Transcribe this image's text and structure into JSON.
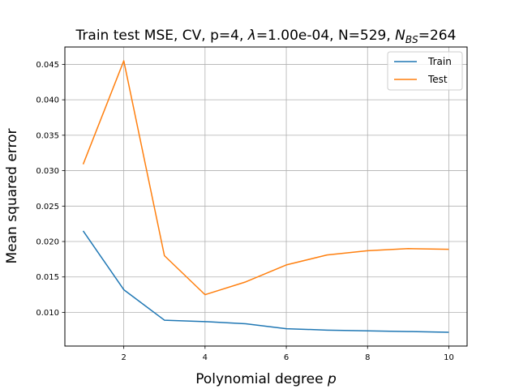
{
  "chart_data": {
    "type": "line",
    "title_parts": {
      "prefix": "Train test MSE, CV, p=4, ",
      "lambda_symbol": "λ",
      "lambda_value": "=1.00e-04, N=529, ",
      "nbs_base": "N",
      "nbs_sub": "BS",
      "nbs_value": "=264"
    },
    "xlabel_text": "Polynomial degree ",
    "xlabel_var": "p",
    "ylabel": "Mean squared error",
    "x": [
      1,
      2,
      3,
      4,
      5,
      6,
      7,
      8,
      9,
      10
    ],
    "xlim": [
      0.55,
      10.45
    ],
    "ylim": [
      0.00525,
      0.04745
    ],
    "xticks": [
      2,
      4,
      6,
      8,
      10
    ],
    "xtick_labels": [
      "2",
      "4",
      "6",
      "8",
      "10"
    ],
    "yticks": [
      0.01,
      0.015,
      0.02,
      0.025,
      0.03,
      0.035,
      0.04,
      0.045
    ],
    "ytick_labels": [
      "0.010",
      "0.015",
      "0.020",
      "0.025",
      "0.030",
      "0.035",
      "0.040",
      "0.045"
    ],
    "grid": true,
    "legend_position": "top-right",
    "series": [
      {
        "name": "Train",
        "color": "#1f77b4",
        "values": [
          0.0215,
          0.0132,
          0.0089,
          0.0087,
          0.0084,
          0.0077,
          0.0075,
          0.0074,
          0.0073,
          0.0072
        ]
      },
      {
        "name": "Test",
        "color": "#ff7f0e",
        "values": [
          0.0309,
          0.0455,
          0.018,
          0.0125,
          0.0143,
          0.0167,
          0.0181,
          0.0187,
          0.019,
          0.0189
        ]
      }
    ]
  }
}
